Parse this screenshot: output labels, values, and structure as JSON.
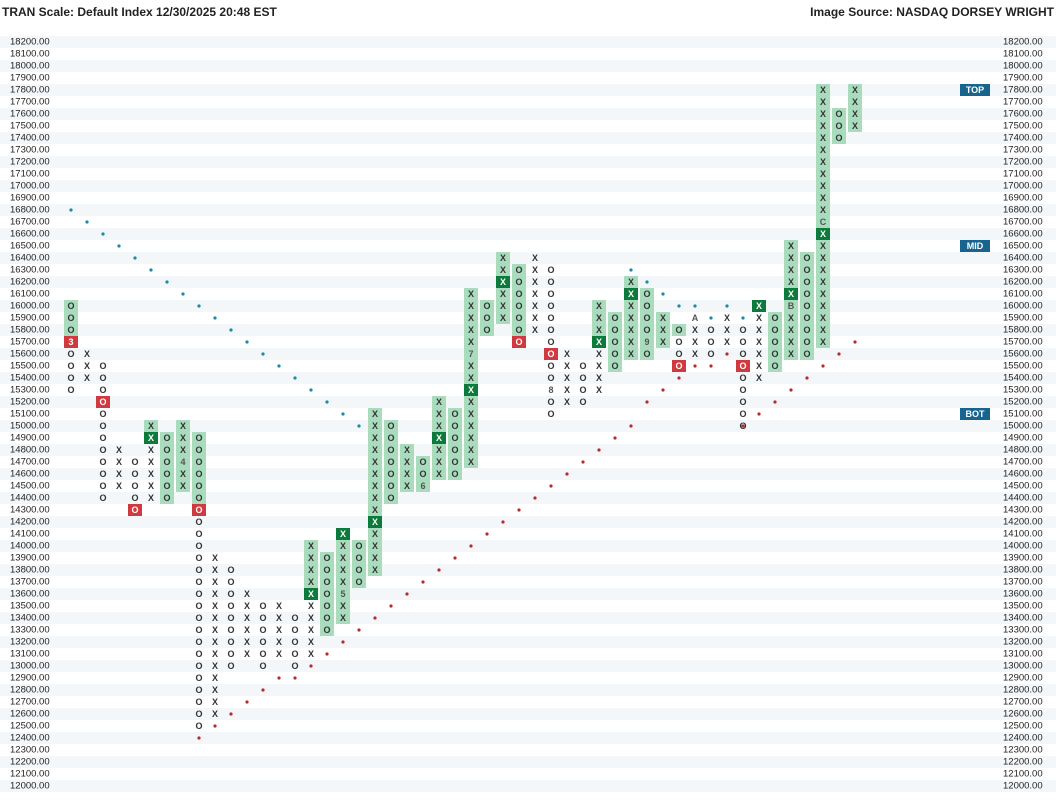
{
  "chart_data": {
    "type": "point_and_figure",
    "title": "TRAN Scale: Default Index 12/30/2025 20:48 EST",
    "source": "Image Source: NASDAQ DORSEY WRIGHT",
    "ylim": [
      12000,
      18200
    ],
    "yticks": [
      {
        "value": 12000,
        "label": "12000.00"
      },
      {
        "value": 12100,
        "label": "12100.00"
      },
      {
        "value": 12200,
        "label": "12200.00"
      },
      {
        "value": 12300,
        "label": "12300.00"
      },
      {
        "value": 12400,
        "label": "12400.00"
      },
      {
        "value": 12500,
        "label": "12500.00"
      },
      {
        "value": 12600,
        "label": "12600.00"
      },
      {
        "value": 12700,
        "label": "12700.00"
      },
      {
        "value": 12800,
        "label": "12800.00"
      },
      {
        "value": 12900,
        "label": "12900.00"
      },
      {
        "value": 13000,
        "label": "13000.00"
      },
      {
        "value": 13100,
        "label": "13100.00"
      },
      {
        "value": 13200,
        "label": "13200.00"
      },
      {
        "value": 13300,
        "label": "13300.00"
      },
      {
        "value": 13400,
        "label": "13400.00"
      },
      {
        "value": 13500,
        "label": "13500.00"
      },
      {
        "value": 13600,
        "label": "13600.00"
      },
      {
        "value": 13700,
        "label": "13700.00"
      },
      {
        "value": 13800,
        "label": "13800.00"
      },
      {
        "value": 13900,
        "label": "13900.00"
      },
      {
        "value": 14000,
        "label": "14000.00"
      },
      {
        "value": 14100,
        "label": "14100.00"
      },
      {
        "value": 14200,
        "label": "14200.00"
      },
      {
        "value": 14300,
        "label": "14300.00"
      },
      {
        "value": 14400,
        "label": "14400.00"
      },
      {
        "value": 14500,
        "label": "14500.00"
      },
      {
        "value": 14600,
        "label": "14600.00"
      },
      {
        "value": 14700,
        "label": "14700.00"
      },
      {
        "value": 14800,
        "label": "14800.00"
      },
      {
        "value": 14900,
        "label": "14900.00"
      },
      {
        "value": 15000,
        "label": "15000.00"
      },
      {
        "value": 15100,
        "label": "15100.00"
      },
      {
        "value": 15200,
        "label": "15200.00"
      },
      {
        "value": 15300,
        "label": "15300.00"
      },
      {
        "value": 15400,
        "label": "15400.00"
      },
      {
        "value": 15500,
        "label": "15500.00"
      },
      {
        "value": 15600,
        "label": "15600.00"
      },
      {
        "value": 15700,
        "label": "15700.00"
      },
      {
        "value": 15800,
        "label": "15800.00"
      },
      {
        "value": 15900,
        "label": "15900.00"
      },
      {
        "value": 16000,
        "label": "16000.00"
      },
      {
        "value": 16100,
        "label": "16100.00"
      },
      {
        "value": 16200,
        "label": "16200.00"
      },
      {
        "value": 16300,
        "label": "16300.00"
      },
      {
        "value": 16400,
        "label": "16400.00"
      },
      {
        "value": 16500,
        "label": "16500.00"
      },
      {
        "value": 16600,
        "label": "16600.00"
      },
      {
        "value": 16700,
        "label": "16700.00"
      },
      {
        "value": 16800,
        "label": "16800.00"
      },
      {
        "value": 16900,
        "label": "16900.00"
      },
      {
        "value": 17000,
        "label": "17000.00"
      },
      {
        "value": 17100,
        "label": "17100.00"
      },
      {
        "value": 17200,
        "label": "17200.00"
      },
      {
        "value": 17300,
        "label": "17300.00"
      },
      {
        "value": 17400,
        "label": "17400.00"
      },
      {
        "value": 17500,
        "label": "17500.00"
      },
      {
        "value": 17600,
        "label": "17600.00"
      },
      {
        "value": 17700,
        "label": "17700.00"
      },
      {
        "value": 17800,
        "label": "17800.00"
      },
      {
        "value": 17900,
        "label": "17900.00"
      },
      {
        "value": 18000,
        "label": "18000.00"
      },
      {
        "value": 18100,
        "label": "18100.00"
      },
      {
        "value": 18200,
        "label": "18200.00"
      }
    ],
    "levels": [
      {
        "value": 17800,
        "label": "TOP"
      },
      {
        "value": 16500,
        "label": "MID"
      },
      {
        "value": 15100,
        "label": "BOT"
      }
    ],
    "columns": [
      {
        "mark": "O",
        "low": 15300,
        "high": 16000,
        "shaded": [
          15800,
          16000
        ],
        "signal": 15700,
        "labels": [
          {
            "value": 15700,
            "label": "3"
          }
        ]
      },
      {
        "mark": "X",
        "low": 15400,
        "high": 15600
      },
      {
        "mark": "O",
        "low": 14400,
        "high": 15500,
        "signal": 15200
      },
      {
        "mark": "X",
        "low": 14500,
        "high": 14800
      },
      {
        "mark": "O",
        "low": 14300,
        "high": 14700,
        "signal": 14300
      },
      {
        "mark": "X",
        "low": 14400,
        "high": 15000,
        "shaded": [
          14900,
          15000
        ],
        "signal": 14900
      },
      {
        "mark": "O",
        "low": 14400,
        "high": 14900,
        "shaded": [
          14400,
          14900
        ]
      },
      {
        "mark": "X",
        "low": 14500,
        "high": 15000,
        "shaded": [
          14500,
          15000
        ],
        "labels": [
          {
            "value": 14700,
            "label": "4"
          }
        ]
      },
      {
        "mark": "O",
        "low": 12500,
        "high": 14900,
        "shaded": [
          14400,
          14900
        ],
        "signal": 14300
      },
      {
        "mark": "X",
        "low": 12600,
        "high": 13900
      },
      {
        "mark": "O",
        "low": 13000,
        "high": 13800
      },
      {
        "mark": "X",
        "low": 13100,
        "high": 13600
      },
      {
        "mark": "O",
        "low": 13000,
        "high": 13500
      },
      {
        "mark": "X",
        "low": 13100,
        "high": 13500
      },
      {
        "mark": "O",
        "low": 13000,
        "high": 13400
      },
      {
        "mark": "X",
        "low": 13100,
        "high": 14000,
        "shaded": [
          13600,
          14000
        ],
        "signal": 13600
      },
      {
        "mark": "O",
        "low": 13300,
        "high": 13900,
        "shaded": [
          13300,
          13900
        ]
      },
      {
        "mark": "X",
        "low": 13400,
        "high": 14100,
        "shaded": [
          13400,
          14100
        ],
        "signal": 14100,
        "labels": [
          {
            "value": 13600,
            "label": "5"
          }
        ]
      },
      {
        "mark": "O",
        "low": 13700,
        "high": 14000,
        "shaded": [
          13700,
          14000
        ]
      },
      {
        "mark": "X",
        "low": 13800,
        "high": 15100,
        "shaded": [
          13800,
          15100
        ],
        "signal": 14200
      },
      {
        "mark": "O",
        "low": 14400,
        "high": 15000,
        "shaded": [
          14400,
          15000
        ]
      },
      {
        "mark": "X",
        "low": 14500,
        "high": 14800,
        "shaded": [
          14500,
          14800
        ]
      },
      {
        "mark": "O",
        "low": 14500,
        "high": 14700,
        "shaded": [
          14500,
          14700
        ],
        "labels": [
          {
            "value": 14500,
            "label": "6"
          }
        ]
      },
      {
        "mark": "X",
        "low": 14600,
        "high": 15200,
        "shaded": [
          14600,
          15200
        ],
        "signal": 14900
      },
      {
        "mark": "O",
        "low": 14600,
        "high": 15100,
        "shaded": [
          14600,
          15100
        ]
      },
      {
        "mark": "X",
        "low": 14700,
        "high": 16100,
        "shaded": [
          14700,
          16100
        ],
        "signal": 15300,
        "labels": [
          {
            "value": 15600,
            "label": "7"
          }
        ]
      },
      {
        "mark": "O",
        "low": 15800,
        "high": 16000,
        "shaded": [
          15800,
          16000
        ]
      },
      {
        "mark": "X",
        "low": 15900,
        "high": 16400,
        "shaded": [
          15900,
          16400
        ],
        "signal": 16200
      },
      {
        "mark": "O",
        "low": 15700,
        "high": 16300,
        "shaded": [
          15800,
          16300
        ],
        "signal": 15700
      },
      {
        "mark": "X",
        "low": 15800,
        "high": 16400
      },
      {
        "mark": "O",
        "low": 15100,
        "high": 16300,
        "signal": 15600,
        "labels": [
          {
            "value": 15300,
            "label": "8"
          }
        ]
      },
      {
        "mark": "X",
        "low": 15200,
        "high": 15600
      },
      {
        "mark": "O",
        "low": 15200,
        "high": 15500
      },
      {
        "mark": "X",
        "low": 15300,
        "high": 16000,
        "shaded": [
          15700,
          16000
        ],
        "signal": 15700
      },
      {
        "mark": "O",
        "low": 15500,
        "high": 15900,
        "shaded": [
          15500,
          15900
        ]
      },
      {
        "mark": "X",
        "low": 15600,
        "high": 16200,
        "shaded": [
          15600,
          16200
        ],
        "signal": 16100
      },
      {
        "mark": "O",
        "low": 15600,
        "high": 16100,
        "shaded": [
          15600,
          16100
        ],
        "labels": [
          {
            "value": 15700,
            "label": "9"
          }
        ]
      },
      {
        "mark": "X",
        "low": 15700,
        "high": 15900,
        "shaded": [
          15700,
          15900
        ]
      },
      {
        "mark": "O",
        "low": 15500,
        "high": 15800,
        "shaded": [
          15800,
          15800
        ],
        "signal": 15500
      },
      {
        "mark": "X",
        "low": 15600,
        "high": 15900,
        "labels": [
          {
            "value": 15900,
            "label": "A"
          }
        ]
      },
      {
        "mark": "O",
        "low": 15600,
        "high": 15800
      },
      {
        "mark": "X",
        "low": 15700,
        "high": 15900
      },
      {
        "mark": "O",
        "low": 15000,
        "high": 15800,
        "signal": 15500
      },
      {
        "mark": "X",
        "low": 15400,
        "high": 16000,
        "signal": 16000
      },
      {
        "mark": "O",
        "low": 15500,
        "high": 15900,
        "shaded": [
          15500,
          15900
        ]
      },
      {
        "mark": "X",
        "low": 15600,
        "high": 16500,
        "shaded": [
          15600,
          16500
        ],
        "signal": 16100,
        "labels": [
          {
            "value": 16000,
            "label": "B"
          }
        ]
      },
      {
        "mark": "O",
        "low": 15600,
        "high": 16400,
        "shaded": [
          15600,
          16400
        ]
      },
      {
        "mark": "X",
        "low": 15700,
        "high": 17800,
        "shaded": [
          15700,
          17800
        ],
        "signal": 16600,
        "labels": [
          {
            "value": 16700,
            "label": "C"
          }
        ]
      },
      {
        "mark": "O",
        "low": 17400,
        "high": 17600,
        "shaded": [
          17400,
          17600
        ]
      },
      {
        "mark": "X",
        "low": 17500,
        "high": 17800,
        "shaded": [
          17500,
          17800
        ]
      }
    ],
    "trendlines": [
      {
        "color": "#1a8aa8",
        "start": 0,
        "values": [
          16800,
          16700,
          16600,
          16500,
          16400,
          16300,
          16200,
          16100,
          16000,
          15900,
          15800,
          15700,
          15600,
          15500,
          15400,
          15300,
          15200,
          15100,
          15000
        ]
      },
      {
        "color": "#1a8aa8",
        "start": 35,
        "values": [
          16300,
          16200,
          16100,
          16000,
          16000,
          15900,
          16000,
          15900
        ]
      },
      {
        "color": "#c0282d",
        "start": 8,
        "values": [
          12400,
          12500,
          12600,
          12700,
          12800,
          12900,
          12900,
          13000,
          13100,
          13200,
          13300,
          13400,
          13500,
          13600,
          13700,
          13800,
          13900,
          14000,
          14100,
          14200,
          14300,
          14400,
          14500,
          14600,
          14700,
          14800,
          14900,
          15000,
          15200,
          15300,
          15400,
          15500,
          15500,
          15600
        ]
      },
      {
        "color": "#c0282d",
        "start": 42,
        "values": [
          15000,
          15100,
          15200,
          15300,
          15400,
          15500,
          15600,
          15700
        ]
      }
    ]
  }
}
